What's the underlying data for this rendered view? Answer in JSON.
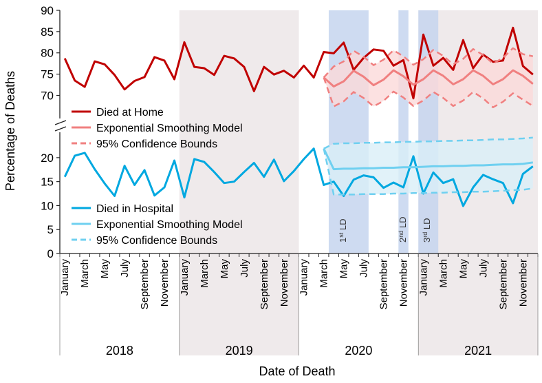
{
  "chart_data": {
    "type": "line",
    "xlabel": "Date of Death",
    "ylabel": "Percentage of Deaths",
    "upper_axis": {
      "ylim": [
        67,
        90
      ],
      "ticks": [
        70,
        75,
        80,
        85,
        90
      ]
    },
    "lower_axis": {
      "ylim": [
        0,
        23
      ],
      "ticks": [
        0,
        5,
        10,
        15,
        20
      ]
    },
    "month_ticks": [
      "January",
      "March",
      "May",
      "July",
      "September",
      "November",
      "January",
      "March",
      "May",
      "July",
      "September",
      "November",
      "January",
      "March",
      "May",
      "July",
      "September",
      "November",
      "January",
      "March",
      "May",
      "July",
      "September",
      "November"
    ],
    "years": [
      "2018",
      "2019",
      "2020",
      "2021"
    ],
    "shaded_years": [
      "2019",
      "2021"
    ],
    "lockdowns": [
      {
        "ordinal": "1",
        "suffix": "st",
        "label": "LD",
        "start_month": 27,
        "end_month": 31
      },
      {
        "ordinal": "2",
        "suffix": "nd",
        "label": "LD",
        "start_month": 34,
        "end_month": 35
      },
      {
        "ordinal": "3",
        "suffix": "rd",
        "label": "LD",
        "start_month": 36,
        "end_month": 38
      }
    ],
    "model_start_month": 26,
    "series": [
      {
        "name": "Died at Home",
        "panel": "upper",
        "color": "#c00000",
        "style": "solid",
        "values": [
          78.7,
          73.5,
          72,
          78,
          77.3,
          74.8,
          71.4,
          73.4,
          74.3,
          79,
          78.2,
          73.8,
          82.5,
          76.7,
          76.4,
          74.8,
          79.3,
          78.7,
          76.7,
          71,
          76.7,
          74.9,
          75.8,
          74.2,
          77,
          74.2,
          80.2,
          79.9,
          82.4,
          76,
          78.8,
          80.8,
          80.5,
          77,
          78.3,
          69.3,
          84.3,
          77,
          78.8,
          76,
          83,
          76.4,
          79.6,
          77.9,
          78.2,
          85.9,
          76.9,
          74.9
        ]
      },
      {
        "name": "Exponential Smoothing Model",
        "panel": "upper",
        "color": "#f08080",
        "style": "solid",
        "values": [
          74.2,
          72.1,
          73.3,
          75.8,
          74.4,
          72.4,
          73.7,
          75.9,
          74.5,
          72.5,
          73.8,
          75.9,
          74.6,
          72.6,
          73.8,
          75.9,
          74.6,
          72.6,
          73.8,
          75.9,
          74.6,
          72.7
        ]
      },
      {
        "name": "95% Confidence Bounds (upper)",
        "panel": "upper",
        "color": "#f08080",
        "style": "dashed",
        "values": [
          74.2,
          76.8,
          78,
          80.5,
          79.1,
          77.1,
          78.4,
          80.6,
          79.2,
          77.2,
          78.5,
          80.7,
          79.3,
          77.3,
          78.6,
          80.9,
          79.5,
          77.5,
          78.8,
          81.1,
          79.7,
          79.2
        ]
      },
      {
        "name": "95% Confidence Bounds (lower)",
        "panel": "upper",
        "color": "#f08080",
        "style": "dashed",
        "values": [
          74.2,
          67.4,
          68.6,
          70.8,
          69.4,
          67.4,
          68.7,
          70.9,
          69.5,
          67.5,
          68.8,
          70.8,
          69.4,
          67.5,
          68.8,
          70.8,
          69.3,
          67.2,
          68.5,
          70.5,
          69,
          67.5
        ]
      },
      {
        "name": "Died in Hospital",
        "panel": "lower",
        "color": "#00a8e0",
        "style": "solid",
        "values": [
          16,
          20.4,
          21,
          17.6,
          14.6,
          12,
          18.3,
          14.3,
          17.4,
          12.1,
          13.8,
          19.4,
          11.7,
          19.7,
          19.1,
          17,
          14.7,
          15,
          17,
          18.9,
          16,
          19.6,
          15.1,
          17.2,
          19.7,
          21.9,
          14.3,
          15,
          12,
          15.4,
          16.3,
          15.9,
          13.7,
          14.8,
          13.8,
          20.3,
          12.5,
          16.9,
          14.7,
          15.5,
          9.9,
          13.8,
          16.4,
          15.5,
          14.7,
          10.5,
          16.6,
          18.2
        ]
      },
      {
        "name": "Exponential Smoothing Model",
        "panel": "lower",
        "color": "#6fd0f0",
        "style": "solid",
        "values": [
          21.9,
          17.6,
          17.7,
          17.7,
          17.8,
          17.8,
          17.9,
          17.9,
          18,
          18,
          18.1,
          18.2,
          18.2,
          18.3,
          18.3,
          18.4,
          18.4,
          18.5,
          18.6,
          18.6,
          18.7,
          19
        ]
      },
      {
        "name": "95% Confidence Bounds (upper)",
        "panel": "lower",
        "color": "#6fd0f0",
        "style": "dashed",
        "values": [
          21.9,
          22.9,
          23,
          23,
          23.1,
          23.1,
          23.2,
          23.2,
          23.3,
          23.3,
          23.4,
          23.4,
          23.5,
          23.5,
          23.6,
          23.6,
          23.7,
          23.8,
          23.8,
          23.9,
          24,
          24.2
        ]
      },
      {
        "name": "95% Confidence Bounds (lower)",
        "panel": "lower",
        "color": "#6fd0f0",
        "style": "dashed",
        "values": [
          21.9,
          12.3,
          12.3,
          12.3,
          12.4,
          12.4,
          12.4,
          12.5,
          12.5,
          12.6,
          12.6,
          12.7,
          12.7,
          12.8,
          12.8,
          12.9,
          12.9,
          13,
          13.1,
          13.2,
          13.3,
          13.6
        ]
      }
    ],
    "legend_upper": [
      {
        "label": "Died at Home",
        "color": "#c00000",
        "style": "solid"
      },
      {
        "label": "Exponential Smoothing Model",
        "color": "#f08080",
        "style": "solid"
      },
      {
        "label": "95% Confidence Bounds",
        "color": "#f08080",
        "style": "dashed"
      }
    ],
    "legend_lower": [
      {
        "label": "Died in Hospital",
        "color": "#00a8e0",
        "style": "solid"
      },
      {
        "label": "Exponential Smoothing Model",
        "color": "#6fd0f0",
        "style": "solid"
      },
      {
        "label": "95% Confidence Bounds",
        "color": "#6fd0f0",
        "style": "dashed"
      }
    ],
    "colors": {
      "year_band": "#efeaeb",
      "lockdown": "#c5d5ee",
      "upper_band": "#fbdada",
      "lower_band": "#d9eff8"
    }
  }
}
